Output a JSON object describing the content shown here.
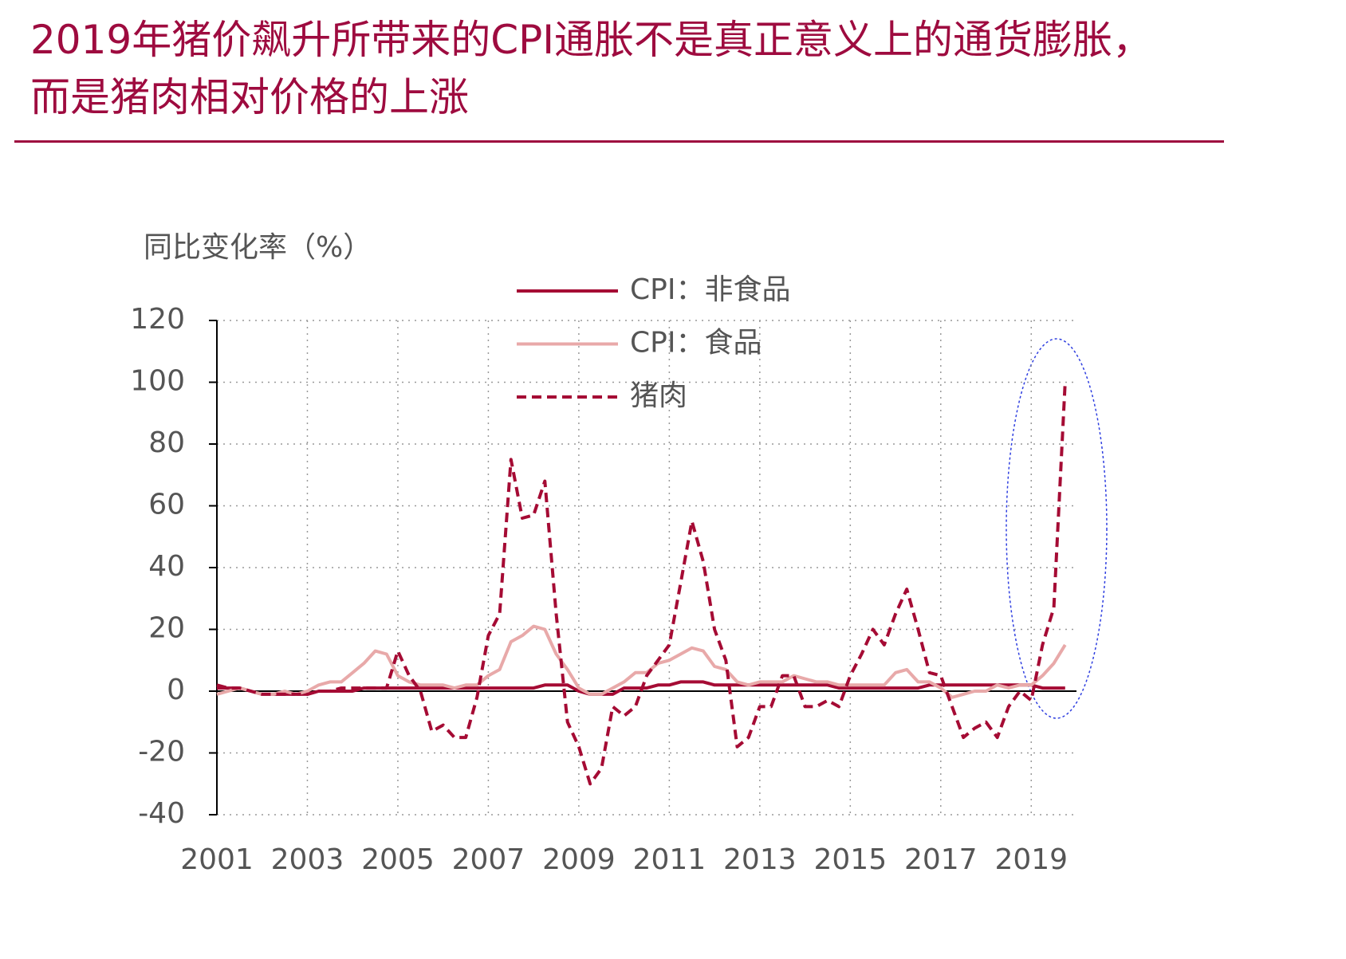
{
  "chart_data": {
    "type": "line",
    "title": "2019年猪价飙升所带来的CPI通胀不是真正意义上的通货膨胀，而是猪肉相对价格的上涨",
    "y_label": "同比变化率（%）",
    "x": [
      2001,
      2001.25,
      2001.5,
      2001.75,
      2002,
      2002.25,
      2002.5,
      2002.75,
      2003,
      2003.25,
      2003.5,
      2003.75,
      2004,
      2004.25,
      2004.5,
      2004.75,
      2005,
      2005.25,
      2005.5,
      2005.75,
      2006,
      2006.25,
      2006.5,
      2006.75,
      2007,
      2007.25,
      2007.5,
      2007.75,
      2008,
      2008.25,
      2008.5,
      2008.75,
      2009,
      2009.25,
      2009.5,
      2009.75,
      2010,
      2010.25,
      2010.5,
      2010.75,
      2011,
      2011.25,
      2011.5,
      2011.75,
      2012,
      2012.25,
      2012.5,
      2012.75,
      2013,
      2013.25,
      2013.5,
      2013.75,
      2014,
      2014.25,
      2014.5,
      2014.75,
      2015,
      2015.25,
      2015.5,
      2015.75,
      2016,
      2016.25,
      2016.5,
      2016.75,
      2017,
      2017.25,
      2017.5,
      2017.75,
      2018,
      2018.25,
      2018.5,
      2018.75,
      2019,
      2019.25,
      2019.5,
      2019.75
    ],
    "series": [
      {
        "name": "CPI：非食品",
        "color": "#a50b34",
        "style": "solid",
        "values": [
          1,
          1,
          1,
          0,
          -1,
          -1,
          -1,
          -1,
          -1,
          0,
          0,
          0,
          0,
          1,
          1,
          1,
          1,
          1,
          1,
          1,
          1,
          1,
          1,
          1,
          1,
          1,
          1,
          1,
          1,
          2,
          2,
          2,
          0,
          -1,
          -1,
          -1,
          1,
          1,
          1,
          2,
          2,
          3,
          3,
          3,
          2,
          2,
          2,
          2,
          2,
          2,
          2,
          2,
          2,
          2,
          2,
          1,
          1,
          1,
          1,
          1,
          1,
          1,
          1,
          2,
          2,
          2,
          2,
          2,
          2,
          2,
          2,
          2,
          2,
          1,
          1,
          1
        ]
      },
      {
        "name": "CPI：食品",
        "color": "#e8a9a9",
        "style": "solid",
        "values": [
          -1,
          0,
          1,
          0,
          -1,
          -1,
          0,
          -1,
          0,
          2,
          3,
          3,
          6,
          9,
          13,
          12,
          5,
          3,
          2,
          2,
          2,
          1,
          2,
          2,
          5,
          7,
          16,
          18,
          21,
          20,
          12,
          7,
          1,
          -1,
          -1,
          1,
          3,
          6,
          6,
          9,
          10,
          12,
          14,
          13,
          8,
          7,
          3,
          2,
          3,
          3,
          3,
          5,
          4,
          3,
          3,
          2,
          2,
          2,
          2,
          2,
          6,
          7,
          3,
          3,
          1,
          -2,
          -1,
          0,
          0,
          2,
          1,
          2,
          2,
          5,
          9,
          15
        ]
      },
      {
        "name": "猪肉",
        "color": "#a50b34",
        "style": "dashed",
        "values": [
          2,
          1,
          1,
          0,
          -1,
          -1,
          -1,
          -1,
          -1,
          0,
          0,
          1,
          1,
          1,
          1,
          1,
          13,
          5,
          0,
          -13,
          -11,
          -15,
          -15,
          -2,
          18,
          25,
          75,
          56,
          57,
          68,
          25,
          -10,
          -18,
          -30,
          -25,
          -5,
          -8,
          -5,
          5,
          10,
          15,
          35,
          55,
          42,
          20,
          10,
          -18,
          -15,
          -5,
          -5,
          5,
          5,
          -5,
          -5,
          -3,
          -5,
          5,
          12,
          20,
          15,
          25,
          33,
          20,
          6,
          5,
          -5,
          -15,
          -12,
          -10,
          -15,
          -5,
          0,
          -3,
          15,
          27,
          100
        ]
      }
    ],
    "xlim": [
      2001,
      2020
    ],
    "xticks": [
      2001,
      2003,
      2005,
      2007,
      2009,
      2011,
      2013,
      2015,
      2017,
      2019
    ],
    "ylim": [
      -40,
      120
    ],
    "yticks": [
      -40,
      -20,
      0,
      20,
      40,
      60,
      80,
      100,
      120
    ],
    "grid": true,
    "legend": "upper center"
  }
}
